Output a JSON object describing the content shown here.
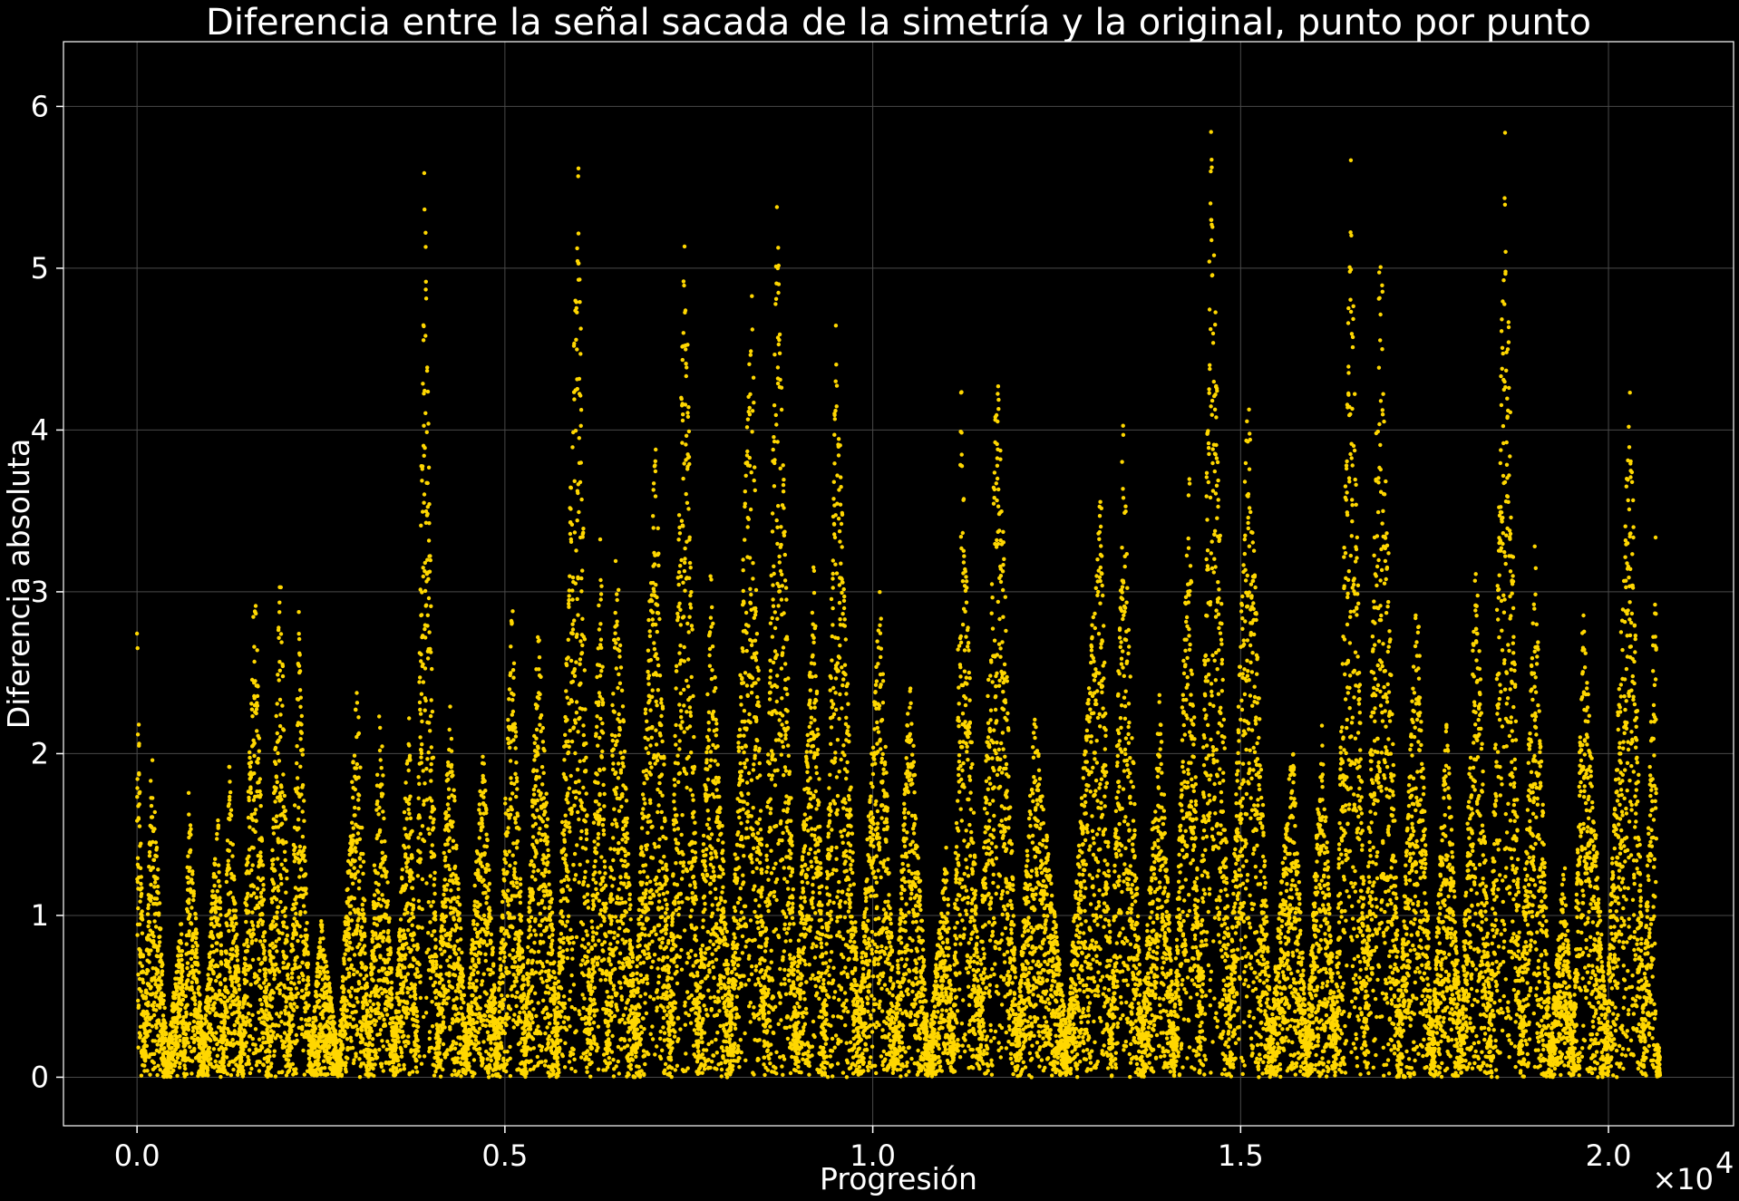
{
  "chart_data": {
    "type": "scatter",
    "title": "Diferencia entre la señal sacada de la simetría y la original, punto por punto",
    "xlabel": "Progresión",
    "ylabel": "Diferencia absoluta",
    "x_offset_label": "×10",
    "x_offset_exponent": "4",
    "xlim": [
      -0.1,
      2.17
    ],
    "ylim": [
      -0.3,
      6.4
    ],
    "x_ticks": [
      0.0,
      0.5,
      1.0,
      1.5,
      2.0
    ],
    "x_tick_labels": [
      "0.0",
      "0.5",
      "1.0",
      "1.5",
      "2.0"
    ],
    "y_ticks": [
      0,
      1,
      2,
      3,
      4,
      5,
      6
    ],
    "y_tick_labels": [
      "0",
      "1",
      "2",
      "3",
      "4",
      "5",
      "6"
    ],
    "grid": true,
    "background": "#000000",
    "marker_color": "#ffd700",
    "x_range_points": [
      0.0,
      2.07
    ],
    "point_count_approx": 20700,
    "envelope_peaks": [
      {
        "x": 0.0,
        "y": 2.88
      },
      {
        "x": 0.02,
        "y": 2.1
      },
      {
        "x": 0.06,
        "y": 1.0
      },
      {
        "x": 0.07,
        "y": 1.8
      },
      {
        "x": 0.11,
        "y": 1.77
      },
      {
        "x": 0.125,
        "y": 2.0
      },
      {
        "x": 0.16,
        "y": 3.2
      },
      {
        "x": 0.195,
        "y": 3.28
      },
      {
        "x": 0.22,
        "y": 2.95
      },
      {
        "x": 0.25,
        "y": 1.0
      },
      {
        "x": 0.3,
        "y": 2.56
      },
      {
        "x": 0.33,
        "y": 2.4
      },
      {
        "x": 0.37,
        "y": 2.35
      },
      {
        "x": 0.39,
        "y": 5.9
      },
      {
        "x": 0.425,
        "y": 2.35
      },
      {
        "x": 0.47,
        "y": 2.1
      },
      {
        "x": 0.51,
        "y": 3.0
      },
      {
        "x": 0.545,
        "y": 2.88
      },
      {
        "x": 0.6,
        "y": 5.74
      },
      {
        "x": 0.63,
        "y": 3.5
      },
      {
        "x": 0.65,
        "y": 3.55
      },
      {
        "x": 0.705,
        "y": 4.15
      },
      {
        "x": 0.745,
        "y": 5.6
      },
      {
        "x": 0.78,
        "y": 3.2
      },
      {
        "x": 0.835,
        "y": 5.1
      },
      {
        "x": 0.87,
        "y": 5.47
      },
      {
        "x": 0.92,
        "y": 3.3
      },
      {
        "x": 0.95,
        "y": 4.72
      },
      {
        "x": 1.01,
        "y": 3.08
      },
      {
        "x": 1.05,
        "y": 2.55
      },
      {
        "x": 1.1,
        "y": 1.45
      },
      {
        "x": 1.12,
        "y": 4.35
      },
      {
        "x": 1.17,
        "y": 4.68
      },
      {
        "x": 1.22,
        "y": 2.25
      },
      {
        "x": 1.31,
        "y": 3.7
      },
      {
        "x": 1.34,
        "y": 4.12
      },
      {
        "x": 1.39,
        "y": 2.42
      },
      {
        "x": 1.43,
        "y": 3.97
      },
      {
        "x": 1.46,
        "y": 6.0
      },
      {
        "x": 1.51,
        "y": 4.35
      },
      {
        "x": 1.57,
        "y": 2.16
      },
      {
        "x": 1.61,
        "y": 2.23
      },
      {
        "x": 1.65,
        "y": 5.7
      },
      {
        "x": 1.69,
        "y": 5.43
      },
      {
        "x": 1.74,
        "y": 3.1
      },
      {
        "x": 1.78,
        "y": 2.27
      },
      {
        "x": 1.82,
        "y": 3.4
      },
      {
        "x": 1.86,
        "y": 6.08
      },
      {
        "x": 1.9,
        "y": 3.34
      },
      {
        "x": 1.94,
        "y": 1.38
      },
      {
        "x": 1.965,
        "y": 3.02
      },
      {
        "x": 2.03,
        "y": 4.36
      },
      {
        "x": 2.065,
        "y": 3.55
      }
    ]
  }
}
